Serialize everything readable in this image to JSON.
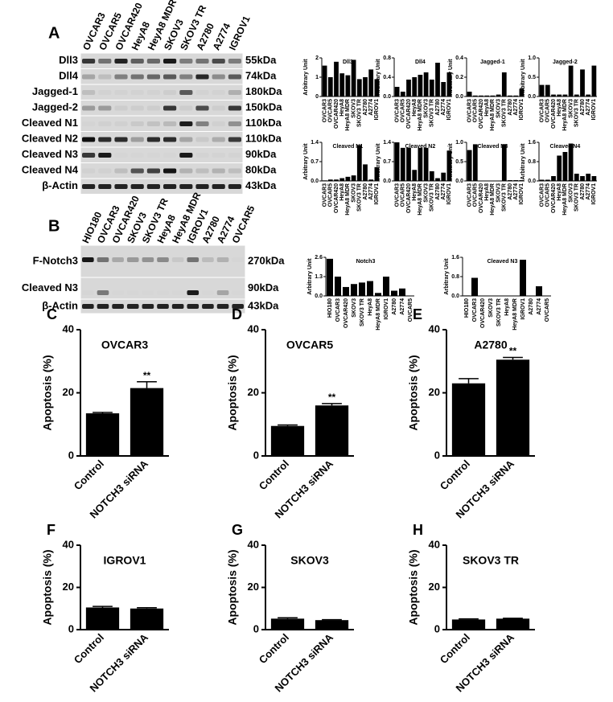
{
  "blot_a": {
    "panel": "A",
    "lanes": [
      "OVCAR3",
      "OVCAR5",
      "OVCAR420",
      "HeyA8",
      "HeyA8 MDR",
      "SKOV3",
      "SKOV3 TR",
      "A2780",
      "A2774",
      "IGROV1"
    ],
    "rows": [
      {
        "name": "Dll3",
        "size": "55kDa"
      },
      {
        "name": "Dll4",
        "size": "74kDa"
      },
      {
        "name": "Jagged-1",
        "size": "180kDa"
      },
      {
        "name": "Jagged-2",
        "size": "150kDa"
      },
      {
        "name": "Cleaved N1",
        "size": "110kDa"
      },
      {
        "name": "Cleaved N2",
        "size": "110kDa"
      },
      {
        "name": "Cleaved N3",
        "size": "90kDa"
      },
      {
        "name": "Cleaved N4",
        "size": "80kDa"
      },
      {
        "name": "β-Actin",
        "size": "43kDa"
      }
    ]
  },
  "blot_b": {
    "panel": "B",
    "lanes": [
      "HIO180",
      "OVCAR3",
      "OVCAR420",
      "SKOV3",
      "SKOV3 TR",
      "HeyA8",
      "HeyA8 MDR",
      "IGROV1",
      "A2780",
      "A2774",
      "OVCAR5"
    ],
    "rows": [
      {
        "name": "F-Notch3",
        "size": "270kDa"
      },
      {
        "name": "Cleaved N3",
        "size": "90kDa"
      },
      {
        "name": "β-Actin",
        "size": "43kDa"
      }
    ]
  },
  "chart_data": [
    {
      "type": "bar",
      "title": "Dll3",
      "ylabel": "Arbitrary Unit",
      "categories": [
        "OVCAR3",
        "OVCAR5",
        "OVCAR420",
        "HeyA8",
        "HeyA8 MDR",
        "SKOV3",
        "SKOV3 TR",
        "A2780",
        "A2774",
        "IGROV1"
      ],
      "values": [
        1.6,
        1.0,
        1.8,
        1.2,
        1.1,
        1.9,
        0.9,
        1.0,
        1.4,
        0.9
      ],
      "ylim": [
        0,
        2
      ],
      "yticks": [
        0,
        1,
        2
      ],
      "color": "#000000"
    },
    {
      "type": "bar",
      "title": "Dll4",
      "ylabel": "Arbitrary Unit",
      "categories": [
        "OVCAR3",
        "OVCAR5",
        "OVCAR420",
        "HeyA8",
        "HeyA8 MDR",
        "SKOV3",
        "SKOV3 TR",
        "A2780",
        "A2774",
        "IGROV1"
      ],
      "values": [
        0.2,
        0.1,
        0.35,
        0.4,
        0.45,
        0.5,
        0.35,
        0.7,
        0.3,
        0.5
      ],
      "ylim": [
        0,
        0.8
      ],
      "yticks": [
        {
          "value": 0,
          "label": "0.0"
        },
        0.4,
        0.8
      ],
      "color": "#000000"
    },
    {
      "type": "bar",
      "title": "Jagged-1",
      "ylabel": "Arbitrary Unit",
      "categories": [
        "OVCAR3",
        "OVCAR5",
        "OVCAR420",
        "HeyA8",
        "HeyA8 MDR",
        "SKOV3",
        "SKOV3 TR",
        "A2780",
        "A2774",
        "IGROV1"
      ],
      "values": [
        0.05,
        0.01,
        0.01,
        0.01,
        0.01,
        0.02,
        0.25,
        0.01,
        0.01,
        0.08
      ],
      "ylim": [
        0,
        0.4
      ],
      "yticks": [
        {
          "value": 0,
          "label": "0.0"
        },
        0.2,
        0.4
      ],
      "color": "#000000"
    },
    {
      "type": "bar",
      "title": "Jagged-2",
      "ylabel": "Arbitrary Unit",
      "categories": [
        "OVCAR3",
        "OVCAR5",
        "OVCAR420",
        "HeyA8",
        "HeyA8 MDR",
        "SKOV3",
        "SKOV3 TR",
        "A2780",
        "A2774",
        "IGROV1"
      ],
      "values": [
        0.3,
        0.3,
        0.05,
        0.05,
        0.05,
        0.8,
        0.05,
        0.7,
        0.05,
        0.8
      ],
      "ylim": [
        0,
        1
      ],
      "yticks": [
        {
          "value": 0,
          "label": "0.0"
        },
        0.5,
        {
          "value": 1,
          "label": "1.0"
        }
      ],
      "color": "#000000"
    },
    {
      "type": "bar",
      "title": "Cleaved N1",
      "ylabel": "Arbitrary Unit",
      "categories": [
        "OVCAR3",
        "OVCAR5",
        "OVCAR420",
        "HeyA8",
        "HeyA8 MDR",
        "SKOV3",
        "SKOV3 TR",
        "A2780",
        "A2774",
        "IGROV1"
      ],
      "values": [
        0.02,
        0.05,
        0.05,
        0.1,
        0.15,
        0.2,
        1.3,
        0.6,
        0.05,
        0.5
      ],
      "ylim": [
        0,
        1.4
      ],
      "yticks": [
        {
          "value": 0,
          "label": "0.0"
        },
        0.7,
        1.4
      ],
      "color": "#000000"
    },
    {
      "type": "bar",
      "title": "Cleaved N2",
      "ylabel": "Arbitrary Unit",
      "categories": [
        "OVCAR3",
        "OVCAR5",
        "OVCAR420",
        "HeyA8",
        "HeyA8 MDR",
        "SKOV3",
        "SKOV3 TR",
        "A2780",
        "A2774",
        "IGROV1"
      ],
      "values": [
        1.4,
        1.2,
        1.2,
        0.4,
        1.2,
        1.2,
        0.35,
        0.1,
        0.3,
        1.1
      ],
      "ylim": [
        0,
        1.4
      ],
      "yticks": [
        {
          "value": 0,
          "label": "0.0"
        },
        0.7,
        1.4
      ],
      "color": "#000000"
    },
    {
      "type": "bar",
      "title": "Cleaved N3",
      "ylabel": "Arbitrary Unit",
      "categories": [
        "OVCAR3",
        "OVCAR5",
        "OVCAR420",
        "HeyA8",
        "HeyA8 MDR",
        "SKOV3",
        "SKOV3 TR",
        "A2780",
        "A2774",
        "IGROV1"
      ],
      "values": [
        0.8,
        0.95,
        0.01,
        0.01,
        0.01,
        0.01,
        0.95,
        0.02,
        0.02,
        0.02
      ],
      "ylim": [
        0,
        1
      ],
      "yticks": [
        {
          "value": 0,
          "label": "0.0"
        },
        0.5,
        {
          "value": 1,
          "label": "1.0"
        }
      ],
      "color": "#000000"
    },
    {
      "type": "bar",
      "title": "Cleaved N4",
      "ylabel": "Arbitrary Unit",
      "categories": [
        "OVCAR3",
        "OVCAR5",
        "OVCAR420",
        "HeyA8",
        "HeyA8 MDR",
        "SKOV3",
        "SKOV3 TR",
        "A2780",
        "A2774",
        "IGROV1"
      ],
      "values": [
        0.05,
        0.05,
        0.2,
        1.05,
        1.2,
        1.55,
        0.3,
        0.2,
        0.3,
        0.2
      ],
      "ylim": [
        0,
        1.6
      ],
      "yticks": [
        {
          "value": 0,
          "label": "0.0"
        },
        0.8,
        1.6
      ],
      "color": "#000000"
    },
    {
      "type": "bar",
      "title": "Notch3",
      "ylabel": "Arbitrary Unit",
      "categories": [
        "HIO180",
        "OVCAR3",
        "OVCAR420",
        "SKOV3",
        "SKOV3 TR",
        "HeyA8",
        "HeyA8 MDR",
        "IGROV1",
        "A2780",
        "A2774",
        "OVCAR5"
      ],
      "values": [
        2.5,
        1.3,
        0.6,
        0.8,
        0.9,
        1.0,
        0.2,
        1.3,
        0.35,
        0.5,
        0.02
      ],
      "ylim": [
        0,
        2.6
      ],
      "yticks": [
        {
          "value": 0,
          "label": "0.0"
        },
        1.3,
        2.6
      ],
      "color": "#000000"
    },
    {
      "type": "bar",
      "title": "Cleaved N3",
      "ylabel": "Arbitrary Unit",
      "categories": [
        "HIO180",
        "OVCAR3",
        "OVCAR420",
        "SKOV3",
        "SKOV3 TR",
        "HeyA8",
        "HeyA8 MDR",
        "IGROV1",
        "A2780",
        "A2774",
        "OVCAR5"
      ],
      "values": [
        0.02,
        0.75,
        0.01,
        0.01,
        0.01,
        0.01,
        0.01,
        1.5,
        0.01,
        0.4,
        0.01
      ],
      "ylim": [
        0,
        1.6
      ],
      "yticks": [
        {
          "value": 0,
          "label": "0.0"
        },
        0.8,
        1.6
      ],
      "color": "#000000"
    },
    {
      "type": "bar",
      "panel": "C",
      "title": "OVCAR3",
      "ylabel": "Apoptosis (%)",
      "categories": [
        "Control",
        "NOTCH3 siRNA"
      ],
      "values": [
        13.5,
        21.5
      ],
      "errors": [
        0.3,
        2
      ],
      "annotations": [
        null,
        "**"
      ],
      "ylim": [
        0,
        40
      ],
      "yticks": [
        0,
        20,
        40
      ],
      "color": "#000000"
    },
    {
      "type": "bar",
      "panel": "D",
      "title": "OVCAR5",
      "ylabel": "Apoptosis (%)",
      "categories": [
        "Control",
        "NOTCH3 siRNA"
      ],
      "values": [
        9.5,
        16
      ],
      "errors": [
        0.3,
        0.6
      ],
      "annotations": [
        null,
        "**"
      ],
      "ylim": [
        0,
        40
      ],
      "yticks": [
        0,
        20,
        40
      ],
      "color": "#000000"
    },
    {
      "type": "bar",
      "panel": "E",
      "title": "A2780",
      "ylabel": "Apoptosis (%)",
      "categories": [
        "Control",
        "NOTCH3 siRNA"
      ],
      "values": [
        23,
        30.5
      ],
      "errors": [
        1.5,
        0.7
      ],
      "annotations": [
        null,
        "**"
      ],
      "ylim": [
        0,
        40
      ],
      "yticks": [
        0,
        20,
        40
      ],
      "color": "#000000"
    },
    {
      "type": "bar",
      "panel": "F",
      "title": "IGROV1",
      "ylabel": "Apoptosis (%)",
      "categories": [
        "Control",
        "NOTCH3 siRNA"
      ],
      "values": [
        10.5,
        10
      ],
      "errors": [
        0.5,
        0.4
      ],
      "ylim": [
        0,
        40
      ],
      "yticks": [
        0,
        20,
        40
      ],
      "color": "#000000"
    },
    {
      "type": "bar",
      "panel": "G",
      "title": "SKOV3",
      "ylabel": "Apoptosis (%)",
      "categories": [
        "Control",
        "NOTCH3 siRNA"
      ],
      "values": [
        5.2,
        4.5
      ],
      "errors": [
        0.4,
        0.2
      ],
      "ylim": [
        0,
        40
      ],
      "yticks": [
        0,
        20,
        40
      ],
      "color": "#000000"
    },
    {
      "type": "bar",
      "panel": "H",
      "title": "SKOV3 TR",
      "ylabel": "Apoptosis (%)",
      "categories": [
        "Control",
        "NOTCH3 siRNA"
      ],
      "values": [
        4.8,
        5.2
      ],
      "errors": [
        0.3,
        0.2
      ],
      "ylim": [
        0,
        40
      ],
      "yticks": [
        0,
        20,
        40
      ],
      "color": "#000000"
    }
  ]
}
